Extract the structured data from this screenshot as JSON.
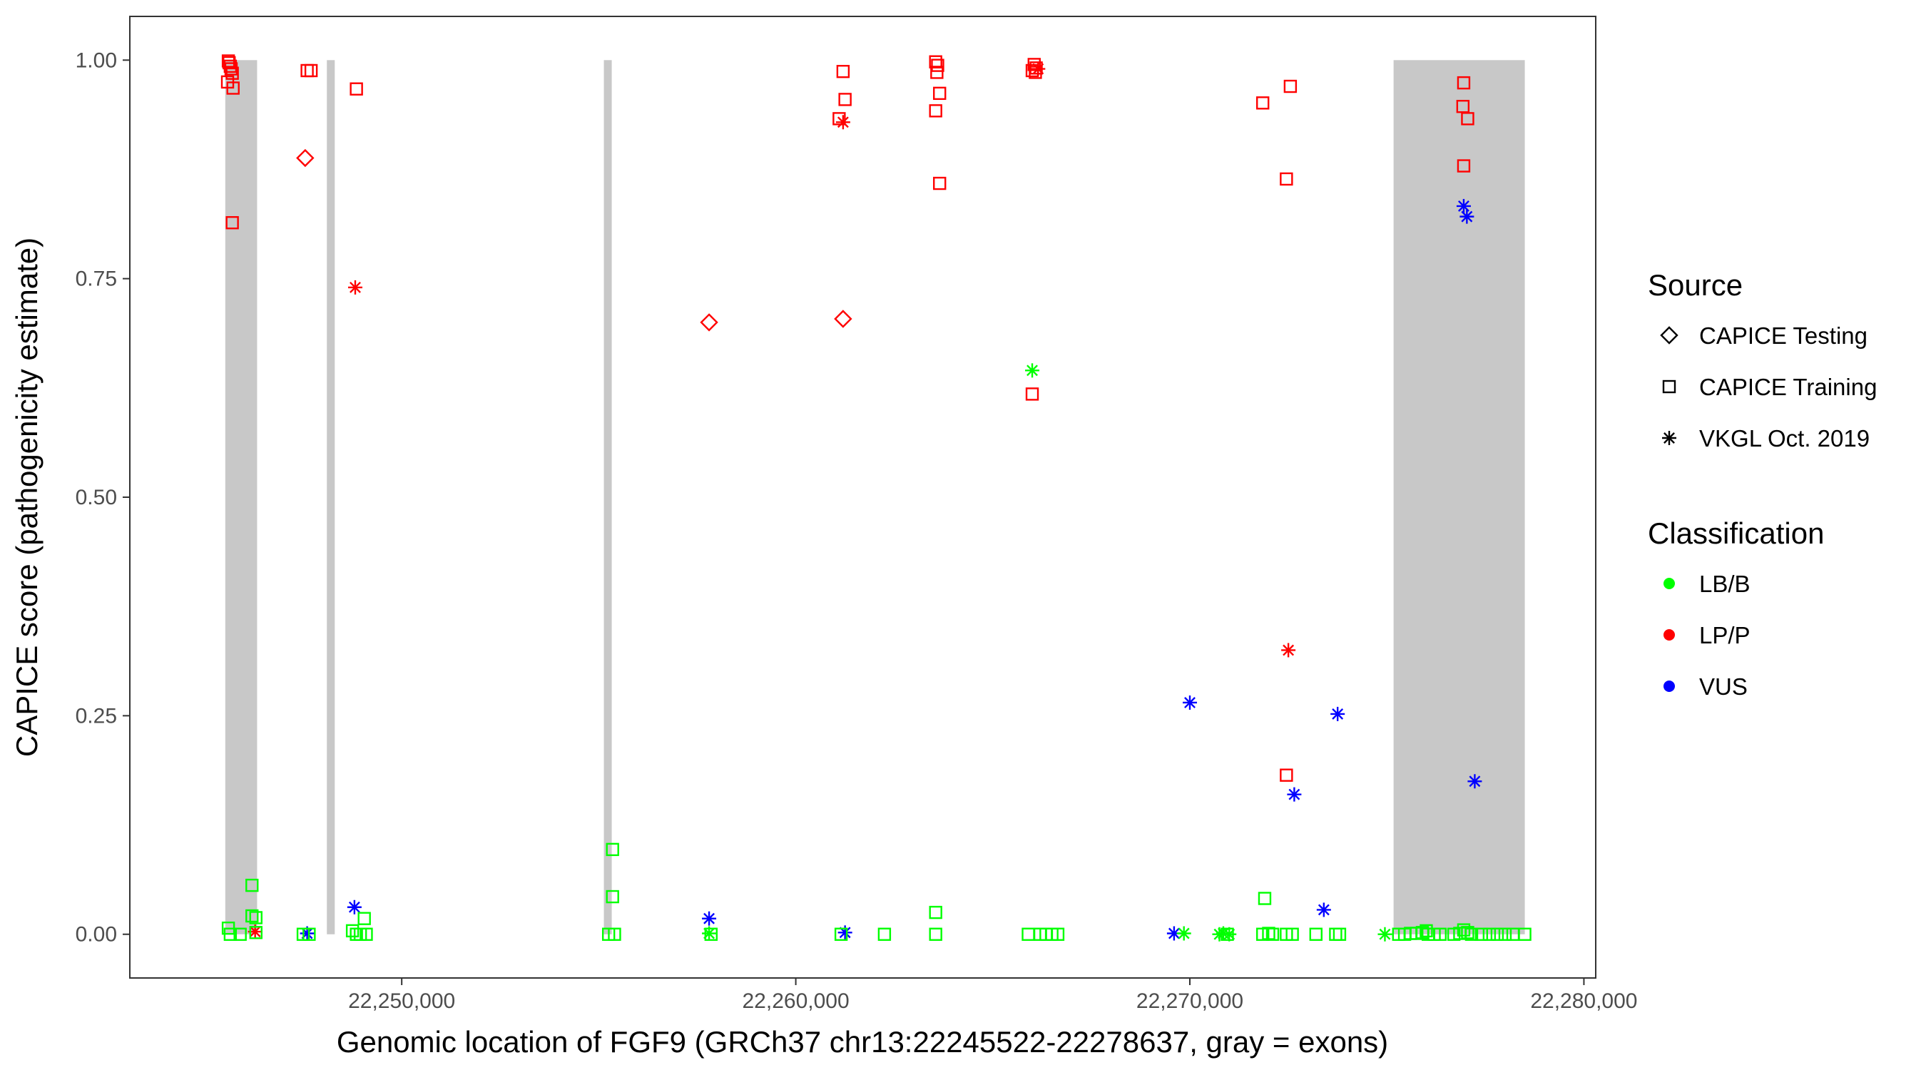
{
  "chart_data": {
    "type": "scatter",
    "xlabel": "Genomic location of FGF9 (GRCh37 chr13:22245522-22278637, gray = exons)",
    "ylabel": "CAPICE score (pathogenicity estimate)",
    "xlim": [
      22243100,
      22280300
    ],
    "ylim": [
      -0.05,
      1.05
    ],
    "x_ticks": [
      22250000,
      22260000,
      22270000,
      22280000
    ],
    "x_tick_labels": [
      "22,250,000",
      "22,260,000",
      "22,270,000",
      "22,280,000"
    ],
    "y_ticks": [
      0,
      0.25,
      0.5,
      0.75,
      1.0
    ],
    "y_tick_labels": [
      "0.00",
      "0.25",
      "0.50",
      "0.75",
      "1.00"
    ],
    "grid": false,
    "exons": [
      {
        "start": 22245522,
        "end": 22246330
      },
      {
        "start": 22248100,
        "end": 22248300
      },
      {
        "start": 22255130,
        "end": 22255330
      },
      {
        "start": 22275170,
        "end": 22278500
      }
    ],
    "exon_color": "#c8c8c8",
    "legends": [
      {
        "title": "Source",
        "placement": "right",
        "entries": [
          {
            "label": "CAPICE Testing",
            "shape": "diamond"
          },
          {
            "label": "CAPICE Training",
            "shape": "square"
          },
          {
            "label": "VKGL Oct. 2019",
            "shape": "asterisk"
          }
        ]
      },
      {
        "title": "Classification",
        "placement": "right",
        "entries": [
          {
            "label": "LB/B",
            "color": "#00ff00"
          },
          {
            "label": "LP/P",
            "color": "#ff0000"
          },
          {
            "label": "VUS",
            "color": "#0000ff"
          }
        ]
      }
    ],
    "series": [
      {
        "name": "LP/P",
        "color": "#ff0000",
        "points": [
          [
            22245600,
            0.999,
            "square"
          ],
          [
            22245620,
            0.997,
            "square"
          ],
          [
            22245650,
            0.993,
            "square"
          ],
          [
            22245670,
            0.99,
            "square"
          ],
          [
            22245700,
            0.985,
            "square"
          ],
          [
            22245580,
            0.975,
            "square"
          ],
          [
            22245720,
            0.968,
            "square"
          ],
          [
            22245700,
            0.814,
            "square"
          ],
          [
            22246280,
            0.003,
            "asterisk"
          ],
          [
            22247600,
            0.988,
            "square"
          ],
          [
            22247700,
            0.988,
            "square"
          ],
          [
            22247550,
            0.888,
            "diamond"
          ],
          [
            22248850,
            0.967,
            "square"
          ],
          [
            22248820,
            0.74,
            "asterisk"
          ],
          [
            22257800,
            0.7,
            "diamond"
          ],
          [
            22261200,
            0.987,
            "square"
          ],
          [
            22261250,
            0.955,
            "square"
          ],
          [
            22261100,
            0.933,
            "square"
          ],
          [
            22261200,
            0.929,
            "asterisk"
          ],
          [
            22261200,
            0.704,
            "diamond"
          ],
          [
            22263550,
            0.998,
            "square"
          ],
          [
            22263600,
            0.994,
            "square"
          ],
          [
            22263580,
            0.986,
            "square"
          ],
          [
            22263650,
            0.962,
            "square"
          ],
          [
            22263550,
            0.942,
            "square"
          ],
          [
            22263650,
            0.859,
            "square"
          ],
          [
            22266050,
            0.995,
            "square"
          ],
          [
            22266100,
            0.991,
            "square"
          ],
          [
            22266000,
            0.988,
            "square"
          ],
          [
            22266080,
            0.986,
            "square"
          ],
          [
            22266150,
            0.99,
            "asterisk"
          ],
          [
            22266000,
            0.618,
            "square"
          ],
          [
            22271850,
            0.951,
            "square"
          ],
          [
            22272550,
            0.97,
            "square"
          ],
          [
            22272450,
            0.864,
            "square"
          ],
          [
            22272500,
            0.325,
            "asterisk"
          ],
          [
            22272450,
            0.182,
            "square"
          ],
          [
            22276950,
            0.974,
            "square"
          ],
          [
            22276930,
            0.947,
            "square"
          ],
          [
            22277050,
            0.933,
            "square"
          ],
          [
            22276950,
            0.879,
            "square"
          ]
        ]
      },
      {
        "name": "VUS",
        "color": "#0000ff",
        "points": [
          [
            22247600,
            0.001,
            "asterisk"
          ],
          [
            22248800,
            0.031,
            "asterisk"
          ],
          [
            22257800,
            0.018,
            "asterisk"
          ],
          [
            22261250,
            0.002,
            "asterisk"
          ],
          [
            22269600,
            0.001,
            "asterisk"
          ],
          [
            22270000,
            0.265,
            "asterisk"
          ],
          [
            22272650,
            0.16,
            "asterisk"
          ],
          [
            22273400,
            0.028,
            "asterisk"
          ],
          [
            22273750,
            0.252,
            "asterisk"
          ],
          [
            22276950,
            0.833,
            "asterisk"
          ],
          [
            22277030,
            0.821,
            "asterisk"
          ],
          [
            22277230,
            0.175,
            "asterisk"
          ]
        ]
      },
      {
        "name": "LB/B",
        "color": "#00ff00",
        "points": [
          [
            22245600,
            0.007,
            "square"
          ],
          [
            22245650,
            0.0,
            "square"
          ],
          [
            22245900,
            0.0,
            "square"
          ],
          [
            22246200,
            0.056,
            "square"
          ],
          [
            22246200,
            0.021,
            "square"
          ],
          [
            22246300,
            0.019,
            "square"
          ],
          [
            22246300,
            0.002,
            "square"
          ],
          [
            22247500,
            0.0,
            "square"
          ],
          [
            22247650,
            0.0,
            "square"
          ],
          [
            22248750,
            0.004,
            "square"
          ],
          [
            22248850,
            0.0,
            "square"
          ],
          [
            22248950,
            0.0,
            "square"
          ],
          [
            22249050,
            0.018,
            "square"
          ],
          [
            22249100,
            0.0,
            "square"
          ],
          [
            22255350,
            0.097,
            "square"
          ],
          [
            22255350,
            0.043,
            "square"
          ],
          [
            22255250,
            0.0,
            "square"
          ],
          [
            22255400,
            0.0,
            "square"
          ],
          [
            22257850,
            0.0,
            "square"
          ],
          [
            22257800,
            0.001,
            "asterisk"
          ],
          [
            22261150,
            0.0,
            "square"
          ],
          [
            22262250,
            0.0,
            "square"
          ],
          [
            22263550,
            0.025,
            "square"
          ],
          [
            22263550,
            0.0,
            "square"
          ],
          [
            22266000,
            0.645,
            "asterisk"
          ],
          [
            22265900,
            0.0,
            "square"
          ],
          [
            22266200,
            0.0,
            "square"
          ],
          [
            22266350,
            0.0,
            "square"
          ],
          [
            22266500,
            0.0,
            "square"
          ],
          [
            22266650,
            0.0,
            "square"
          ],
          [
            22269850,
            0.001,
            "asterisk"
          ],
          [
            22270750,
            0.0,
            "asterisk"
          ],
          [
            22270850,
            0.001,
            "asterisk"
          ],
          [
            22271000,
            0.0,
            "asterisk"
          ],
          [
            22270950,
            0.0,
            "square"
          ],
          [
            22271900,
            0.041,
            "square"
          ],
          [
            22271850,
            0.0,
            "square"
          ],
          [
            22272000,
            0.001,
            "square"
          ],
          [
            22272100,
            0.0,
            "square"
          ],
          [
            22272450,
            0.0,
            "square"
          ],
          [
            22272600,
            0.0,
            "square"
          ],
          [
            22273200,
            0.0,
            "square"
          ],
          [
            22273700,
            0.0,
            "square"
          ],
          [
            22273800,
            0.0,
            "square"
          ],
          [
            22274950,
            0.0,
            "asterisk"
          ],
          [
            22275300,
            0.0,
            "square"
          ],
          [
            22275450,
            0.0,
            "square"
          ],
          [
            22275600,
            0.001,
            "square"
          ],
          [
            22275750,
            0.001,
            "square"
          ],
          [
            22275900,
            0.002,
            "square"
          ],
          [
            22276000,
            0.004,
            "square"
          ],
          [
            22276050,
            0.0,
            "square"
          ],
          [
            22276200,
            0.0,
            "square"
          ],
          [
            22276350,
            0.0,
            "square"
          ],
          [
            22276700,
            0.0,
            "square"
          ],
          [
            22276850,
            0.001,
            "square"
          ],
          [
            22276950,
            0.005,
            "square"
          ],
          [
            22277050,
            0.002,
            "square"
          ],
          [
            22277150,
            0.0,
            "square"
          ],
          [
            22277400,
            0.0,
            "square"
          ],
          [
            22277600,
            0.0,
            "square"
          ],
          [
            22277800,
            0.0,
            "square"
          ],
          [
            22278000,
            0.0,
            "square"
          ],
          [
            22278200,
            0.0,
            "square"
          ],
          [
            22278500,
            0.0,
            "square"
          ]
        ]
      }
    ]
  }
}
